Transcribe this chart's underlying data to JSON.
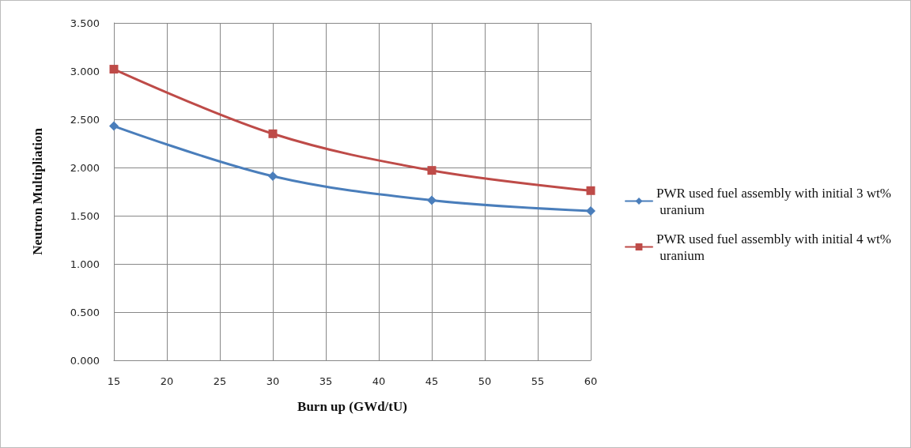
{
  "chart_data": {
    "type": "line",
    "xlabel": "Burn up (GWd/tU)",
    "ylabel": "Neutron Multipliation",
    "x": [
      15,
      30,
      45,
      60
    ],
    "series": [
      {
        "name": "PWR used fuel assembly with initial 3 wt% uranium",
        "color": "#4a7ebb",
        "marker": "diamond",
        "values": [
          2.43,
          1.91,
          1.66,
          1.55
        ]
      },
      {
        "name": "PWR used fuel assembly with initial 4 wt% uranium",
        "color": "#be4b48",
        "marker": "square",
        "values": [
          3.02,
          2.35,
          1.97,
          1.76
        ]
      }
    ],
    "xlim": [
      15,
      60
    ],
    "xticks": [
      15,
      20,
      25,
      30,
      35,
      40,
      45,
      50,
      55,
      60
    ],
    "ylim": [
      0,
      3.5
    ],
    "yticks": [
      {
        "value": 0,
        "label": "0.000"
      },
      {
        "value": 0.5,
        "label": "0.500"
      },
      {
        "value": 1,
        "label": "1.000"
      },
      {
        "value": 1.5,
        "label": "1.500"
      },
      {
        "value": 2,
        "label": "2.000"
      },
      {
        "value": 2.5,
        "label": "2.500"
      },
      {
        "value": 3,
        "label": "3.000"
      },
      {
        "value": 3.5,
        "label": "3.500"
      }
    ],
    "grid": true,
    "legend": "right",
    "line_style": "solid"
  }
}
